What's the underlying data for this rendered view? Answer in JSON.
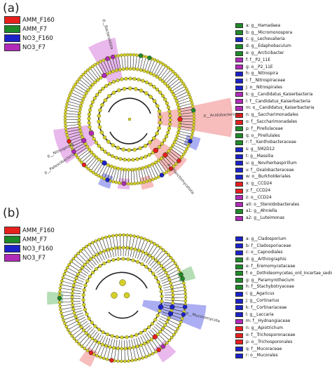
{
  "panels": [
    {
      "letter": "(a)",
      "groups": [
        {
          "label": "AMM_F160",
          "color": "#e8201d"
        },
        {
          "label": "AMM_F7",
          "color": "#1f8a2a"
        },
        {
          "label": "NO3_F160",
          "color": "#1b22c8"
        },
        {
          "label": "NO3_F7",
          "color": "#b12ab8"
        }
      ],
      "taxa": [
        {
          "label": "a: g__Hamadaea",
          "color": "#1f8a2a"
        },
        {
          "label": "b: g__Micromonospora",
          "color": "#1f8a2a"
        },
        {
          "label": "c: g__Lechevalieria",
          "color": "#1b22c8"
        },
        {
          "label": "d: g__Edaphobaculum",
          "color": "#1f8a2a"
        },
        {
          "label": "e: g__Arcticibacter",
          "color": "#1f8a2a"
        },
        {
          "label": "f: f__P2_11E",
          "color": "#b12ab8"
        },
        {
          "label": "g: o__P2_11E",
          "color": "#b12ab8"
        },
        {
          "label": "h: g__Nitrospira",
          "color": "#1b22c8"
        },
        {
          "label": "i: f__Nitrospiraceae",
          "color": "#1b22c8"
        },
        {
          "label": "j: o__Nitrospirales",
          "color": "#1b22c8"
        },
        {
          "label": "k: g__Candidatus_Kaiserbacteria",
          "color": "#b12ab8"
        },
        {
          "label": "l: f__Candidatus_Kaiserbacteria",
          "color": "#b12ab8"
        },
        {
          "label": "m: o__Candidatus_Kaiserbacteria",
          "color": "#b12ab8"
        },
        {
          "label": "n: g__Saccharimonadales",
          "color": "#e8201d"
        },
        {
          "label": "o: f__Saccharimonadales",
          "color": "#e8201d"
        },
        {
          "label": "p: f__Pirellulaceae",
          "color": "#1f8a2a"
        },
        {
          "label": "q: o__Pirellulales",
          "color": "#1f8a2a"
        },
        {
          "label": "r: f__Xanthobacteraceae",
          "color": "#1f8a2a"
        },
        {
          "label": "s: g__SM2D12",
          "color": "#1b22c8"
        },
        {
          "label": "t: g__Massilia",
          "color": "#1b22c8"
        },
        {
          "label": "u: g__Noviherbaspirillum",
          "color": "#1b22c8"
        },
        {
          "label": "v: f__Oxalobacteraceae",
          "color": "#1b22c8"
        },
        {
          "label": "w: o__Burkholderiales",
          "color": "#1b22c8"
        },
        {
          "label": "x: g__CCD24",
          "color": "#e8201d"
        },
        {
          "label": "y: f__CCD24",
          "color": "#e8201d"
        },
        {
          "label": "z: o__CCD24",
          "color": "#b12ab8"
        },
        {
          "label": "a0: o__Steroidobacterales",
          "color": "#b12ab8"
        },
        {
          "label": "a1: g__Ahniella",
          "color": "#1f8a2a"
        },
        {
          "label": "a2: g__Luteimonas",
          "color": "#b12ab8"
        }
      ],
      "clade_labels": [
        {
          "text": "p__Bacteroidota"
        },
        {
          "text": "p__Acidobacteriota"
        },
        {
          "text": "p__Nitrospirota"
        },
        {
          "text": "p__Patescibacteria"
        },
        {
          "text": "p__Planctomycetota"
        }
      ]
    },
    {
      "letter": "(b)",
      "groups": [
        {
          "label": "AMM_F160",
          "color": "#e8201d"
        },
        {
          "label": "AMM_F7",
          "color": "#1f8a2a"
        },
        {
          "label": "NO3_F160",
          "color": "#1b22c8"
        },
        {
          "label": "NO3_F7",
          "color": "#b12ab8"
        }
      ],
      "taxa": [
        {
          "label": "a: g__Cladosporium",
          "color": "#1b22c8"
        },
        {
          "label": "b: f__Cladosporiaceae",
          "color": "#1b22c8"
        },
        {
          "label": "c: o__Capnodiales",
          "color": "#1b22c8"
        },
        {
          "label": "d: g__Arthrographis",
          "color": "#1f8a2a"
        },
        {
          "label": "e: f__Eremomycetaceae",
          "color": "#1f8a2a"
        },
        {
          "label": "f: o__Dothideomycetes_ord_Incertae_sedis",
          "color": "#1f8a2a"
        },
        {
          "label": "g: g__Paramyrothecium",
          "color": "#1f8a2a"
        },
        {
          "label": "h: f__Stachybotryaceae",
          "color": "#1f8a2a"
        },
        {
          "label": "i: g__Agaricus",
          "color": "#1b22c8"
        },
        {
          "label": "j: g__Cortinarius",
          "color": "#1b22c8"
        },
        {
          "label": "k: f__Cortinariaceae",
          "color": "#1b22c8"
        },
        {
          "label": "l: g__Laccaria",
          "color": "#1b22c8"
        },
        {
          "label": "m: f__Hydnangiaceae",
          "color": "#b12ab8"
        },
        {
          "label": "n: g__Apiotrichum",
          "color": "#e8201d"
        },
        {
          "label": "o: f__Trichosporonaceae",
          "color": "#e8201d"
        },
        {
          "label": "p: o__Trichosporonales",
          "color": "#e8201d"
        },
        {
          "label": "q: f__Mucoraceae",
          "color": "#1b22c8"
        },
        {
          "label": "r: o__Mucorales",
          "color": "#1b22c8"
        }
      ],
      "clade_labels": [
        {
          "text": "p__Mucoromycota"
        }
      ]
    }
  ],
  "colors": {
    "node_fill": "#d4cf2a",
    "node_stroke": "#5a5a10",
    "branch": "#222222",
    "highlight_red": "#f4a5a5",
    "highlight_green": "#9ed39e",
    "highlight_blue": "#8f93ee",
    "highlight_purple": "#e2a0e6"
  }
}
